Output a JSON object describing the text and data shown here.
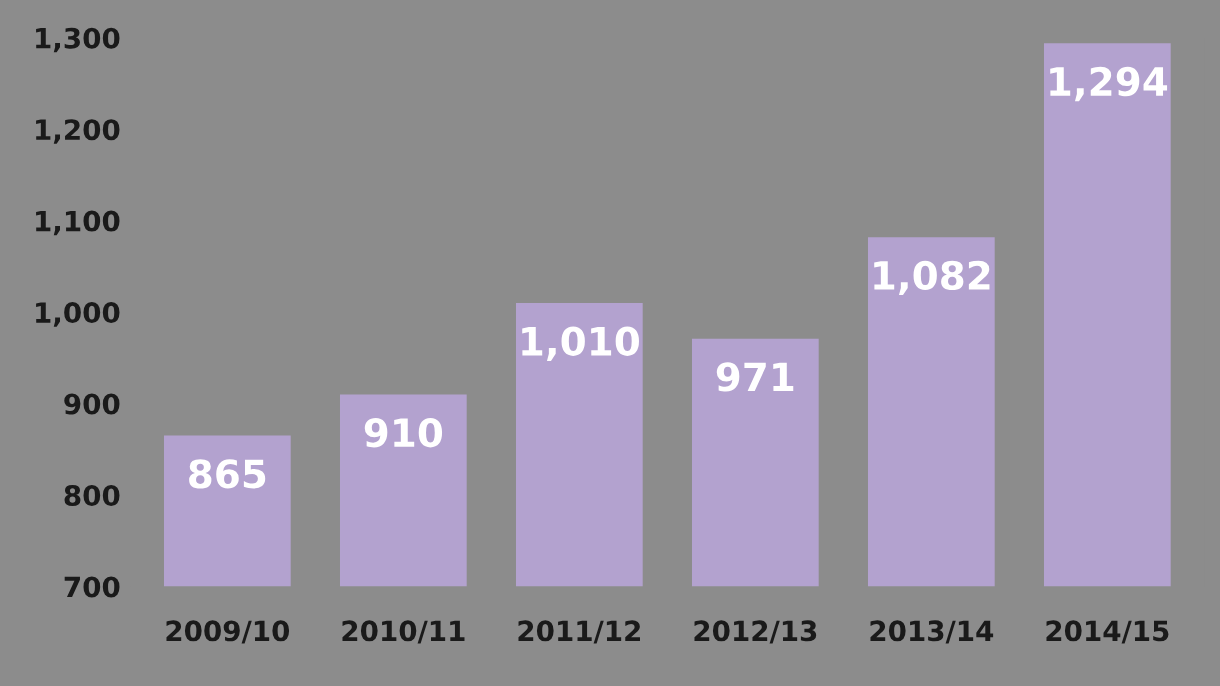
{
  "chart_data": {
    "type": "bar",
    "categories": [
      "2009/10",
      "2010/11",
      "2011/12",
      "2012/13",
      "2013/14",
      "2014/15"
    ],
    "values": [
      865,
      910,
      1010,
      971,
      1082,
      1294
    ],
    "value_labels": [
      "865",
      "910",
      "1,010",
      "971",
      "1,082",
      "1,294"
    ],
    "color": "#b3a2cf",
    "ylim": [
      700,
      1300
    ],
    "yticks": [
      700,
      800,
      900,
      {
        "value": 1000,
        "label": "1,000"
      },
      {
        "value": 1100,
        "label": "1,100"
      },
      {
        "value": 1200,
        "label": "1,200"
      },
      {
        "value": 1300,
        "label": "1,300"
      }
    ],
    "grid": false
  }
}
